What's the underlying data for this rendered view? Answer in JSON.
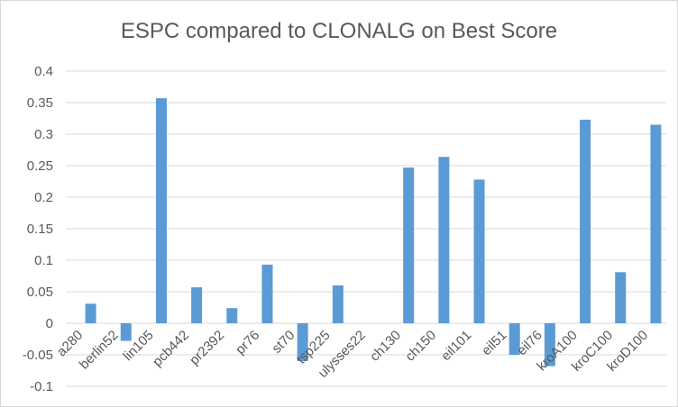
{
  "chart_data": {
    "type": "bar",
    "title": "ESPC compared to CLONALG on Best Score",
    "xlabel": "",
    "ylabel": "",
    "ylim": [
      -0.1,
      0.4
    ],
    "yticks": [
      0.4,
      0.35,
      0.3,
      0.25,
      0.2,
      0.15,
      0.1,
      0.05,
      0,
      -0.05,
      -0.1
    ],
    "ytick_labels": [
      "0.4",
      "0.35",
      "0.3",
      "0.25",
      "0.2",
      "0.15",
      "0.1",
      "0.05",
      "0",
      "-0.05",
      "-0.1"
    ],
    "categories": [
      "a280",
      "berlin52",
      "lin105",
      "pcb442",
      "pr2392",
      "pr76",
      "st70",
      "tsp225",
      "ulysses22",
      "ch130",
      "ch150",
      "eil101",
      "eil51",
      "eil76",
      "kroA100",
      "kroC100",
      "kroD100"
    ],
    "values": [
      0.031,
      -0.028,
      0.357,
      0.057,
      0.024,
      0.093,
      -0.06,
      0.06,
      0,
      0.247,
      0.264,
      0.228,
      -0.05,
      -0.068,
      0.323,
      0.081,
      0.315
    ],
    "bar_color": "#5b9bd5",
    "grid": true,
    "legend": "none"
  }
}
